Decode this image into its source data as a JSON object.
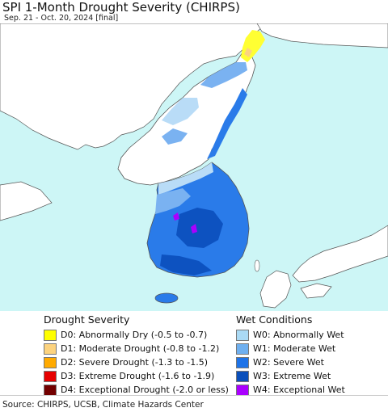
{
  "header": {
    "title": "SPI 1-Month Drought Severity (CHIRPS)",
    "subtitle": "Sep. 21 - Oct. 20, 2024 [final]"
  },
  "map": {
    "colors": {
      "ocean": "#cdf6f6",
      "land": "#ffffff",
      "border": "#555555",
      "w0": "#b9dcf7",
      "w1": "#7ab2f1",
      "w2": "#2a7be9",
      "w3": "#0d52c0",
      "d0": "#ffff33",
      "d1": "#fcd37f"
    }
  },
  "legend": {
    "drought": {
      "title": "Drought Severity",
      "items": [
        {
          "label": "D0: Abnormally Dry (-0.5 to -0.7)",
          "color": "#ffff00"
        },
        {
          "label": "D1: Moderate Drought (-0.8 to -1.2)",
          "color": "#fcd37f"
        },
        {
          "label": "D2: Severe Drought (-1.3 to -1.5)",
          "color": "#ffaa00"
        },
        {
          "label": "D3: Extreme Drought (-1.6 to -1.9)",
          "color": "#e60000"
        },
        {
          "label": "D4: Exceptional Drought (-2.0 or less)",
          "color": "#730000"
        }
      ]
    },
    "wet": {
      "title": "Wet Conditions",
      "items": [
        {
          "label": "W0: Abnormally Wet",
          "color": "#aadaf5"
        },
        {
          "label": "W1: Moderate Wet",
          "color": "#6fb0f0"
        },
        {
          "label": "W2: Severe Wet",
          "color": "#1e73e8"
        },
        {
          "label": "W3: Extreme Wet",
          "color": "#0a4fbb"
        },
        {
          "label": "W4: Exceptional Wet",
          "color": "#aa00ff"
        }
      ]
    }
  },
  "footer": {
    "source": "Source: CHIRPS, UCSB, Climate Hazards Center"
  }
}
